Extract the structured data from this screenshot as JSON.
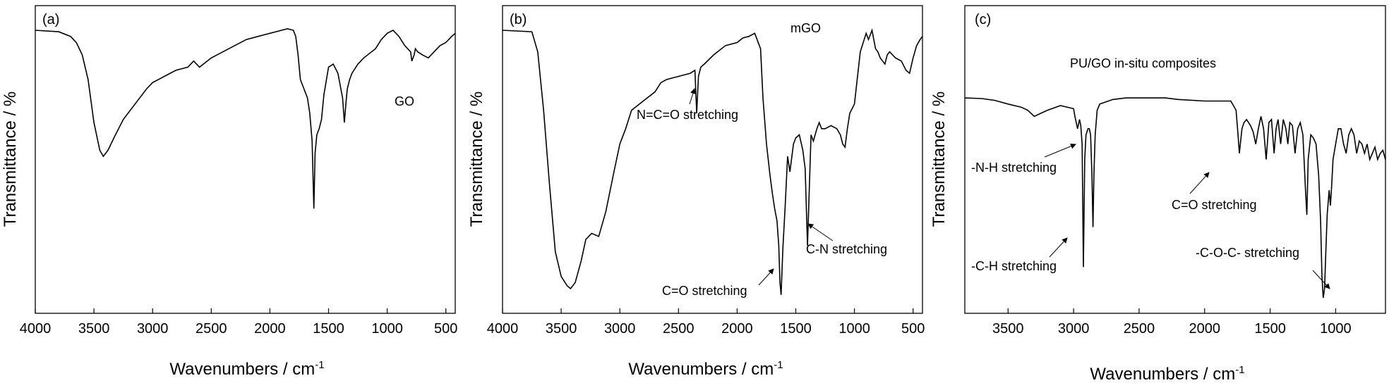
{
  "chart_data": [
    {
      "type": "line",
      "panel_label": "(a)",
      "sample_label": "GO",
      "xlabel": "Wavenumbers / cm",
      "xlabel_sup": "-1",
      "ylabel": "Transmittance / %",
      "xlim": [
        4000,
        420
      ],
      "ylim": [
        0,
        1
      ],
      "xticks": [
        4000,
        3500,
        3000,
        2500,
        2000,
        1500,
        1000,
        500
      ],
      "yticks_shown": false,
      "annotations": [],
      "series": [
        {
          "x": [
            4000,
            3800,
            3700,
            3650,
            3600,
            3550,
            3500,
            3450,
            3420,
            3380,
            3330,
            3250,
            3150,
            3050,
            3000,
            2950,
            2900,
            2800,
            2700,
            2650,
            2600,
            2500,
            2400,
            2300,
            2200,
            2100,
            2000,
            1900,
            1850,
            1800,
            1780,
            1760,
            1740,
            1720,
            1700,
            1680,
            1660,
            1640,
            1625,
            1615,
            1600,
            1580,
            1560,
            1540,
            1500,
            1460,
            1420,
            1400,
            1380,
            1365,
            1350,
            1340,
            1320,
            1300,
            1250,
            1200,
            1100,
            1050,
            1000,
            950,
            900,
            850,
            800,
            790,
            780,
            770,
            760,
            740,
            700,
            650,
            600,
            550,
            500,
            450,
            420
          ],
          "y": [
            0.92,
            0.915,
            0.9,
            0.88,
            0.84,
            0.76,
            0.62,
            0.53,
            0.51,
            0.53,
            0.57,
            0.63,
            0.68,
            0.73,
            0.75,
            0.76,
            0.77,
            0.79,
            0.8,
            0.82,
            0.8,
            0.83,
            0.85,
            0.87,
            0.89,
            0.9,
            0.91,
            0.92,
            0.925,
            0.92,
            0.9,
            0.84,
            0.76,
            0.74,
            0.72,
            0.7,
            0.65,
            0.56,
            0.34,
            0.52,
            0.58,
            0.6,
            0.63,
            0.71,
            0.8,
            0.81,
            0.78,
            0.74,
            0.7,
            0.62,
            0.69,
            0.73,
            0.76,
            0.78,
            0.81,
            0.83,
            0.86,
            0.89,
            0.91,
            0.92,
            0.9,
            0.87,
            0.85,
            0.82,
            0.83,
            0.84,
            0.86,
            0.85,
            0.84,
            0.83,
            0.85,
            0.87,
            0.88,
            0.9,
            0.91
          ]
        }
      ]
    },
    {
      "type": "line",
      "panel_label": "(b)",
      "sample_label": "mGO",
      "xlabel": "Wavenumbers / cm",
      "xlabel_sup": "-1",
      "ylabel": "Transmittance / %",
      "xlim": [
        4000,
        420
      ],
      "ylim": [
        0,
        1
      ],
      "xticks": [
        4000,
        3500,
        3000,
        2500,
        2000,
        1500,
        1000,
        500
      ],
      "yticks_shown": false,
      "annotations": [
        {
          "text": "N=C=O stretching",
          "x": 2340
        },
        {
          "text": "C=O stretching",
          "x": 1630
        },
        {
          "text": "C-N stretching",
          "x": 1400
        }
      ],
      "series": [
        {
          "x": [
            4000,
            3750,
            3700,
            3650,
            3600,
            3550,
            3500,
            3450,
            3420,
            3380,
            3330,
            3290,
            3240,
            3180,
            3120,
            3050,
            3000,
            2950,
            2900,
            2800,
            2700,
            2650,
            2600,
            2500,
            2400,
            2360,
            2345,
            2330,
            2310,
            2280,
            2200,
            2100,
            2000,
            1950,
            1900,
            1850,
            1800,
            1780,
            1750,
            1720,
            1700,
            1680,
            1660,
            1645,
            1635,
            1625,
            1610,
            1590,
            1570,
            1550,
            1520,
            1500,
            1470,
            1440,
            1420,
            1400,
            1385,
            1370,
            1350,
            1320,
            1300,
            1280,
            1250,
            1200,
            1150,
            1120,
            1100,
            1080,
            1060,
            1040,
            1000,
            950,
            900,
            880,
            850,
            820,
            800,
            780,
            760,
            740,
            720,
            700,
            650,
            600,
            560,
            530,
            500,
            470,
            440,
            420
          ],
          "y": [
            0.92,
            0.915,
            0.85,
            0.66,
            0.42,
            0.2,
            0.12,
            0.09,
            0.08,
            0.1,
            0.17,
            0.24,
            0.26,
            0.25,
            0.33,
            0.46,
            0.55,
            0.6,
            0.66,
            0.69,
            0.72,
            0.75,
            0.76,
            0.77,
            0.78,
            0.79,
            0.65,
            0.77,
            0.8,
            0.81,
            0.84,
            0.87,
            0.88,
            0.895,
            0.9,
            0.91,
            0.86,
            0.7,
            0.55,
            0.45,
            0.39,
            0.34,
            0.3,
            0.22,
            0.1,
            0.06,
            0.21,
            0.35,
            0.51,
            0.46,
            0.55,
            0.57,
            0.58,
            0.53,
            0.47,
            0.22,
            0.4,
            0.58,
            0.56,
            0.6,
            0.62,
            0.6,
            0.6,
            0.61,
            0.6,
            0.58,
            0.55,
            0.54,
            0.6,
            0.65,
            0.68,
            0.85,
            0.91,
            0.89,
            0.92,
            0.86,
            0.85,
            0.83,
            0.82,
            0.81,
            0.84,
            0.85,
            0.83,
            0.82,
            0.79,
            0.78,
            0.83,
            0.87,
            0.89,
            0.9
          ]
        }
      ]
    },
    {
      "type": "line",
      "panel_label": "(c)",
      "sample_label": "PU/GO in-situ composites",
      "xlabel": "Wavenumbers / cm",
      "xlabel_sup": "-1",
      "ylabel": "Transmittance / %",
      "xlim": [
        3830,
        620
      ],
      "ylim": [
        0,
        1
      ],
      "xticks": [
        3500,
        3000,
        2500,
        2000,
        1500,
        1000
      ],
      "yticks_shown": false,
      "annotations": [
        {
          "text": "-N-H stretching",
          "x": 2950
        },
        {
          "text": "-C-H stretching",
          "x": 2920
        },
        {
          "text": "C=O stretching",
          "x": 1730
        },
        {
          "text": "-C-O-C- stretching",
          "x": 1100
        }
      ],
      "series": [
        {
          "x": [
            3830,
            3700,
            3600,
            3500,
            3400,
            3350,
            3300,
            3250,
            3200,
            3100,
            3000,
            2990,
            2970,
            2955,
            2945,
            2935,
            2925,
            2915,
            2905,
            2890,
            2880,
            2870,
            2860,
            2852,
            2845,
            2835,
            2820,
            2800,
            2700,
            2600,
            2500,
            2400,
            2300,
            2200,
            2000,
            1900,
            1800,
            1760,
            1745,
            1735,
            1725,
            1715,
            1700,
            1680,
            1650,
            1630,
            1610,
            1590,
            1570,
            1550,
            1530,
            1510,
            1490,
            1470,
            1455,
            1440,
            1420,
            1400,
            1380,
            1365,
            1350,
            1330,
            1310,
            1290,
            1270,
            1250,
            1230,
            1220,
            1210,
            1190,
            1170,
            1150,
            1130,
            1115,
            1105,
            1095,
            1085,
            1075,
            1065,
            1050,
            1040,
            1030,
            1020,
            1000,
            980,
            960,
            940,
            920,
            900,
            880,
            860,
            840,
            820,
            800,
            780,
            760,
            740,
            720,
            700,
            680,
            660,
            640,
            620
          ],
          "y": [
            0.7,
            0.698,
            0.692,
            0.68,
            0.67,
            0.66,
            0.64,
            0.65,
            0.66,
            0.675,
            0.665,
            0.64,
            0.6,
            0.63,
            0.61,
            0.55,
            0.15,
            0.5,
            0.58,
            0.6,
            0.6,
            0.58,
            0.45,
            0.28,
            0.45,
            0.58,
            0.66,
            0.68,
            0.695,
            0.7,
            0.7,
            0.7,
            0.7,
            0.695,
            0.69,
            0.69,
            0.69,
            0.66,
            0.58,
            0.52,
            0.56,
            0.6,
            0.62,
            0.63,
            0.61,
            0.59,
            0.55,
            0.6,
            0.64,
            0.6,
            0.5,
            0.62,
            0.63,
            0.52,
            0.6,
            0.63,
            0.55,
            0.63,
            0.6,
            0.55,
            0.62,
            0.61,
            0.52,
            0.6,
            0.62,
            0.58,
            0.4,
            0.32,
            0.5,
            0.58,
            0.57,
            0.55,
            0.45,
            0.3,
            0.12,
            0.05,
            0.08,
            0.2,
            0.32,
            0.4,
            0.35,
            0.42,
            0.5,
            0.55,
            0.6,
            0.6,
            0.55,
            0.52,
            0.58,
            0.6,
            0.58,
            0.52,
            0.56,
            0.55,
            0.52,
            0.55,
            0.5,
            0.52,
            0.54,
            0.5,
            0.52,
            0.53,
            0.5
          ]
        }
      ]
    }
  ]
}
